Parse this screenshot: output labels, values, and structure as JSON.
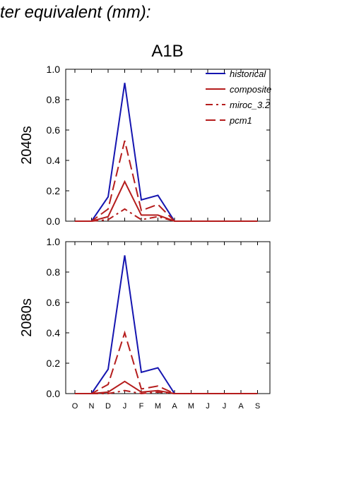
{
  "page": {
    "title": "ter equivalent (mm):"
  },
  "colors": {
    "historical": "#1515b0",
    "scenario": "#b51d1d",
    "axis": "#000000"
  },
  "chart_data": {
    "type": "line",
    "title": "A1B",
    "categories": [
      "O",
      "N",
      "D",
      "J",
      "F",
      "M",
      "A",
      "M",
      "J",
      "J",
      "A",
      "S"
    ],
    "ylim": [
      0,
      1.0
    ],
    "yticks": [
      "0.0",
      "0.2",
      "0.4",
      "0.6",
      "0.8",
      "1.0"
    ],
    "legend": {
      "placement": "top-right",
      "entries": [
        {
          "name": "historical",
          "style": "solid",
          "color": "#1515b0"
        },
        {
          "name": "composite",
          "style": "solid",
          "color": "#b51d1d"
        },
        {
          "name": "miroc_3.2",
          "style": "dashdot",
          "color": "#b51d1d"
        },
        {
          "name": "pcm1",
          "style": "dashed",
          "color": "#b51d1d"
        }
      ]
    },
    "panels": [
      {
        "ylabel": "2040s",
        "series": [
          {
            "name": "historical",
            "style": "solid",
            "color": "#1515b0",
            "values": [
              0,
              0,
              0.16,
              0.91,
              0.14,
              0.17,
              0,
              0,
              0,
              0,
              0,
              0
            ]
          },
          {
            "name": "composite",
            "style": "solid",
            "color": "#b51d1d",
            "values": [
              0,
              0,
              0.03,
              0.26,
              0.04,
              0.04,
              0,
              0,
              0,
              0,
              0,
              0
            ]
          },
          {
            "name": "miroc_3.2",
            "style": "dashdot",
            "color": "#b51d1d",
            "values": [
              0,
              0,
              0.01,
              0.08,
              0.01,
              0.03,
              0,
              0,
              0,
              0,
              0,
              0
            ]
          },
          {
            "name": "pcm1",
            "style": "dashed",
            "color": "#b51d1d",
            "values": [
              0,
              0,
              0.08,
              0.53,
              0.07,
              0.11,
              0,
              0,
              0,
              0,
              0,
              0
            ]
          }
        ]
      },
      {
        "ylabel": "2080s",
        "series": [
          {
            "name": "historical",
            "style": "solid",
            "color": "#1515b0",
            "values": [
              0,
              0,
              0.16,
              0.91,
              0.14,
              0.17,
              0,
              0,
              0,
              0,
              0,
              0
            ]
          },
          {
            "name": "composite",
            "style": "solid",
            "color": "#b51d1d",
            "values": [
              0,
              0,
              0.01,
              0.08,
              0.01,
              0.02,
              0,
              0,
              0,
              0,
              0,
              0
            ]
          },
          {
            "name": "miroc_3.2",
            "style": "dashdot",
            "color": "#b51d1d",
            "values": [
              0,
              0,
              0.0,
              0.02,
              0.0,
              0.01,
              0,
              0,
              0,
              0,
              0,
              0
            ]
          },
          {
            "name": "pcm1",
            "style": "dashed",
            "color": "#b51d1d",
            "values": [
              0,
              0,
              0.06,
              0.4,
              0.03,
              0.05,
              0,
              0,
              0,
              0,
              0,
              0
            ]
          }
        ]
      }
    ]
  }
}
